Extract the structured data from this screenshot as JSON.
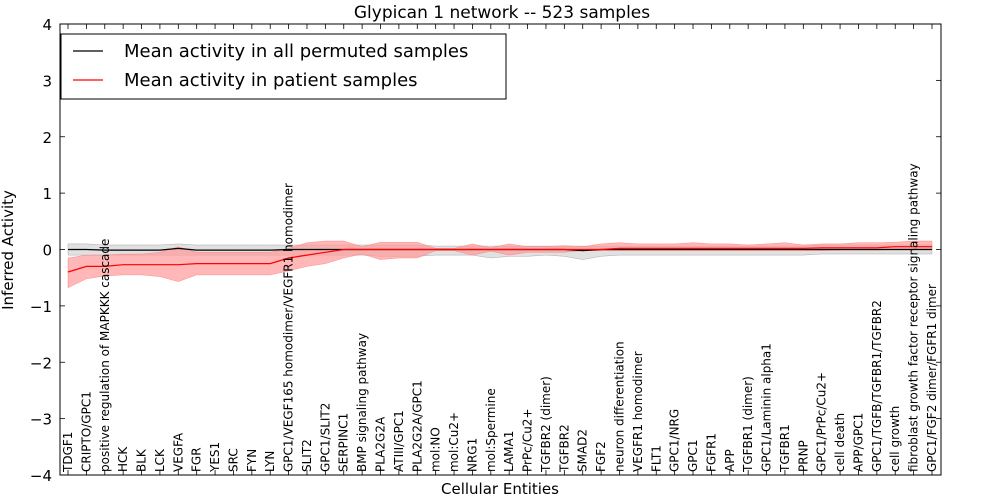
{
  "chart_data": {
    "type": "line",
    "title": "Glypican 1 network -- 523 samples",
    "xlabel": "Cellular Entities",
    "ylabel": "Inferred Activity",
    "ylim": [
      -4,
      4
    ],
    "yticks": [
      -4,
      -3,
      -2,
      -1,
      0,
      1,
      2,
      3,
      4
    ],
    "ytick_labels": [
      "−4",
      "−3",
      "−2",
      "−1",
      "0",
      "1",
      "2",
      "3",
      "4"
    ],
    "legend_position": "top-left",
    "categories": [
      "TDGF1",
      "CRIPTO/GPC1",
      "positive regulation of MAPKKK cascade",
      "HCK",
      "BLK",
      "LCK",
      "VEGFA",
      "FGR",
      "YES1",
      "SRC",
      "FYN",
      "LYN",
      "GPC1/VEGF165 homodimer/VEGFR1 homodimer",
      "SLIT2",
      "GPC1/SLIT2",
      "SERPINC1",
      "BMP signaling pathway",
      "PLA2G2A",
      "ATIII/GPC1",
      "PLA2G2A/GPC1",
      "mol:NO",
      "mol:Cu2+",
      "NRG1",
      "mol:Spermine",
      "LAMA1",
      "PrPc/Cu2+",
      "TGFBR2 (dimer)",
      "TGFBR2",
      "SMAD2",
      "FGF2",
      "neuron differentiation",
      "VEGFR1 homodimer",
      "FLT1",
      "GPC1/NRG",
      "GPC1",
      "FGFR1",
      "APP",
      "TGFBR1 (dimer)",
      "GPC1/Laminin alpha1",
      "TGFBR1",
      "PRNP",
      "GPC1/PrPc/Cu2+",
      "cell death",
      "APP/GPC1",
      "GPC1/TGFB/TGFBR1/TGFBR2",
      "cell growth",
      "fibroblast growth factor receptor signaling pathway",
      "GPC1/FGF2 dimer/FGFR1 dimer"
    ],
    "series": [
      {
        "name": "Mean activity in all permuted samples",
        "color": "#000000",
        "band_color": "#bdbdbd",
        "values": [
          0.0,
          0.0,
          -0.01,
          -0.01,
          -0.01,
          -0.01,
          0.02,
          -0.01,
          -0.01,
          -0.01,
          -0.01,
          -0.01,
          0.0,
          0.0,
          0.0,
          0.0,
          0.0,
          0.0,
          0.0,
          0.0,
          0.0,
          0.0,
          0.0,
          0.0,
          0.0,
          0.0,
          0.0,
          0.0,
          -0.02,
          0.0,
          0.0,
          0.0,
          0.0,
          0.0,
          0.0,
          0.0,
          0.0,
          0.0,
          0.0,
          0.0,
          0.0,
          0.0,
          0.0,
          0.0,
          0.0,
          0.0,
          0.0,
          0.0
        ],
        "lower": [
          -0.1,
          -0.1,
          -0.1,
          -0.1,
          -0.1,
          -0.1,
          -0.1,
          -0.1,
          -0.1,
          -0.1,
          -0.1,
          -0.1,
          -0.1,
          -0.1,
          -0.1,
          -0.1,
          -0.1,
          -0.12,
          -0.12,
          -0.12,
          -0.1,
          -0.1,
          -0.1,
          -0.15,
          -0.12,
          -0.12,
          -0.1,
          -0.12,
          -0.18,
          -0.12,
          -0.1,
          -0.1,
          -0.1,
          -0.1,
          -0.1,
          -0.1,
          -0.1,
          -0.1,
          -0.1,
          -0.1,
          -0.1,
          -0.08,
          -0.08,
          -0.08,
          -0.08,
          -0.08,
          -0.08,
          -0.08
        ],
        "upper": [
          0.1,
          0.1,
          0.08,
          0.08,
          0.08,
          0.08,
          0.1,
          0.08,
          0.08,
          0.08,
          0.08,
          0.08,
          0.08,
          0.08,
          0.08,
          0.08,
          0.08,
          0.08,
          0.08,
          0.08,
          0.06,
          0.06,
          0.06,
          0.06,
          0.06,
          0.06,
          0.06,
          0.06,
          0.06,
          0.06,
          0.06,
          0.06,
          0.06,
          0.06,
          0.06,
          0.06,
          0.06,
          0.06,
          0.06,
          0.06,
          0.06,
          0.08,
          0.08,
          0.08,
          0.08,
          0.08,
          0.08,
          0.08
        ]
      },
      {
        "name": "Mean activity in patient samples",
        "color": "#ff0000",
        "band_color": "#ff9999",
        "values": [
          -0.4,
          -0.3,
          -0.3,
          -0.27,
          -0.27,
          -0.27,
          -0.27,
          -0.25,
          -0.25,
          -0.25,
          -0.25,
          -0.25,
          -0.15,
          -0.1,
          -0.05,
          0.0,
          0.0,
          0.0,
          0.0,
          0.0,
          0.0,
          0.0,
          0.0,
          0.0,
          0.0,
          0.0,
          0.0,
          0.0,
          0.0,
          0.0,
          0.02,
          0.02,
          0.02,
          0.02,
          0.02,
          0.02,
          0.02,
          0.02,
          0.02,
          0.02,
          0.02,
          0.03,
          0.03,
          0.03,
          0.03,
          0.05,
          0.05,
          0.05
        ],
        "lower": [
          -0.68,
          -0.52,
          -0.47,
          -0.45,
          -0.45,
          -0.48,
          -0.57,
          -0.45,
          -0.45,
          -0.45,
          -0.45,
          -0.45,
          -0.38,
          -0.3,
          -0.25,
          -0.15,
          -0.08,
          -0.18,
          -0.15,
          -0.15,
          -0.02,
          -0.02,
          -0.1,
          -0.03,
          -0.1,
          -0.05,
          -0.05,
          -0.05,
          -0.02,
          -0.02,
          -0.02,
          -0.02,
          -0.02,
          -0.02,
          -0.02,
          -0.02,
          -0.02,
          -0.02,
          -0.02,
          -0.02,
          -0.02,
          -0.02,
          -0.01,
          -0.01,
          -0.01,
          0.0,
          0.0,
          0.0
        ],
        "upper": [
          -0.15,
          -0.1,
          -0.1,
          -0.08,
          -0.08,
          -0.05,
          0.05,
          -0.05,
          -0.05,
          -0.05,
          -0.05,
          -0.05,
          0.02,
          0.12,
          0.15,
          0.15,
          0.05,
          0.13,
          0.13,
          0.13,
          0.02,
          0.02,
          0.1,
          0.03,
          0.1,
          0.05,
          0.05,
          0.07,
          0.05,
          0.1,
          0.12,
          0.1,
          0.1,
          0.1,
          0.12,
          0.1,
          0.1,
          0.08,
          0.1,
          0.12,
          0.08,
          0.1,
          0.1,
          0.12,
          0.12,
          0.13,
          0.15,
          0.15
        ]
      }
    ]
  }
}
